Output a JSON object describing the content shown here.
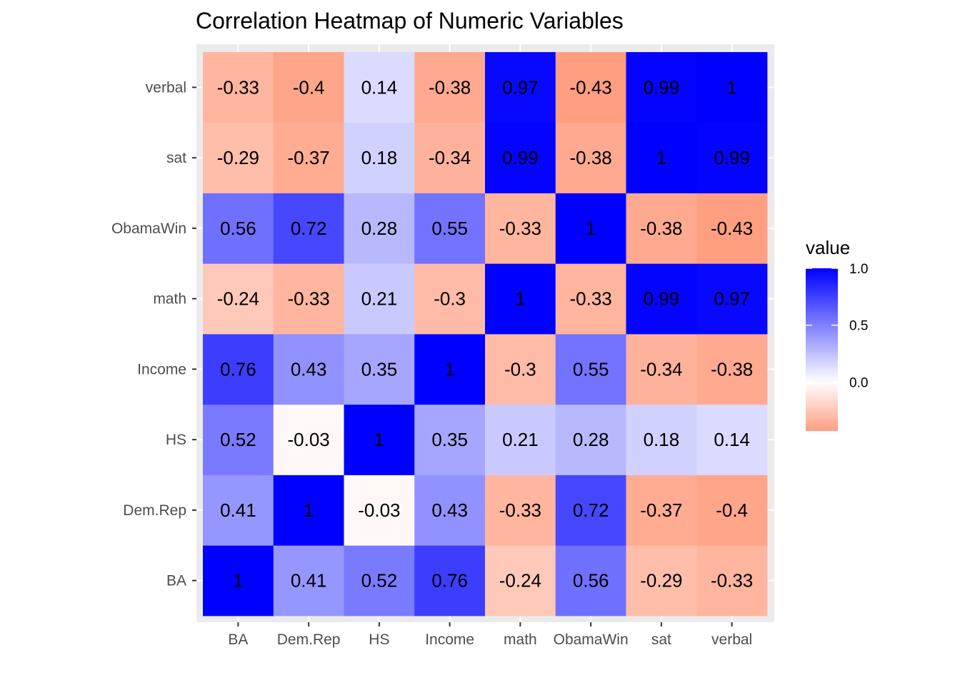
{
  "chart_data": {
    "type": "heatmap",
    "title": "Correlation Heatmap of Numeric Variables",
    "xlabel": "",
    "ylabel": "",
    "x_categories": [
      "BA",
      "Dem.Rep",
      "HS",
      "Income",
      "math",
      "ObamaWin",
      "sat",
      "verbal"
    ],
    "y_categories": [
      "BA",
      "Dem.Rep",
      "HS",
      "Income",
      "math",
      "ObamaWin",
      "sat",
      "verbal"
    ],
    "values": [
      [
        1,
        0.41,
        0.52,
        0.76,
        -0.24,
        0.56,
        -0.29,
        -0.33
      ],
      [
        0.41,
        1,
        -0.03,
        0.43,
        -0.33,
        0.72,
        -0.37,
        -0.4
      ],
      [
        0.52,
        -0.03,
        1,
        0.35,
        0.21,
        0.28,
        0.18,
        0.14
      ],
      [
        0.76,
        0.43,
        0.35,
        1,
        -0.3,
        0.55,
        -0.34,
        -0.38
      ],
      [
        -0.24,
        -0.33,
        0.21,
        -0.3,
        1,
        -0.33,
        0.99,
        0.97
      ],
      [
        0.56,
        0.72,
        0.28,
        0.55,
        -0.33,
        1,
        -0.38,
        -0.43
      ],
      [
        -0.29,
        -0.37,
        0.18,
        -0.34,
        0.99,
        -0.38,
        1,
        0.99
      ],
      [
        -0.33,
        -0.4,
        0.14,
        -0.38,
        0.97,
        -0.43,
        0.99,
        1
      ]
    ],
    "cell_labels": [
      [
        "1",
        "0.41",
        "0.52",
        "0.76",
        "-0.24",
        "0.56",
        "-0.29",
        "-0.33"
      ],
      [
        "0.41",
        "1",
        "-0.03",
        "0.43",
        "-0.33",
        "0.72",
        "-0.37",
        "-0.4"
      ],
      [
        "0.52",
        "-0.03",
        "1",
        "0.35",
        "0.21",
        "0.28",
        "0.18",
        "0.14"
      ],
      [
        "0.76",
        "0.43",
        "0.35",
        "1",
        "-0.3",
        "0.55",
        "-0.34",
        "-0.38"
      ],
      [
        "-0.24",
        "-0.33",
        "0.21",
        "-0.3",
        "1",
        "-0.33",
        "0.99",
        "0.97"
      ],
      [
        "0.56",
        "0.72",
        "0.28",
        "0.55",
        "-0.33",
        "1",
        "-0.38",
        "-0.43"
      ],
      [
        "-0.29",
        "-0.37",
        "0.18",
        "-0.34",
        "0.99",
        "-0.38",
        "1",
        "0.99"
      ],
      [
        "-0.33",
        "-0.4",
        "0.14",
        "-0.38",
        "0.97",
        "-0.43",
        "0.99",
        "1"
      ]
    ],
    "legend": {
      "title": "value",
      "position": "right",
      "ticks": [
        1.0,
        0.5,
        0.0
      ],
      "tick_labels": [
        "1.0",
        "0.5",
        "0.0"
      ],
      "range": [
        -0.43,
        1.0
      ]
    },
    "color_scale": {
      "low": "#FF9E81",
      "mid": "#FFFFFF",
      "high": "#0000FF",
      "midpoint": 0
    },
    "panel_background": "#EBEBEB",
    "gridline_color": "#FFFFFF",
    "grid": true
  }
}
